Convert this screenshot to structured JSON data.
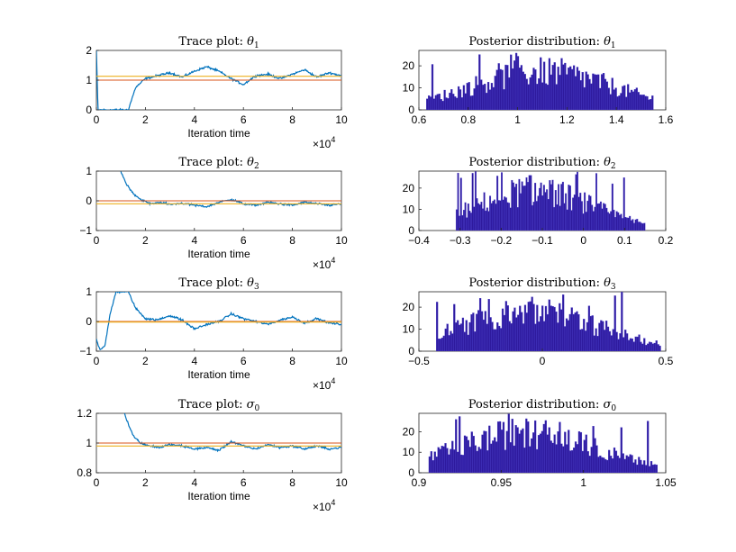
{
  "chart_data": [
    {
      "type": "line",
      "title": "Trace plot: θ1",
      "title_prefix": "Trace plot: ",
      "title_symbol": "θ",
      "title_sub": "1",
      "xlabel": "Iteration time",
      "x_multiplier": "×10",
      "x_multiplier_exp": "4",
      "xlim": [
        0,
        10
      ],
      "ylim": [
        0,
        2
      ],
      "xticks": [
        "0",
        "2",
        "4",
        "6",
        "8",
        "10"
      ],
      "yticks": [
        "0",
        "1",
        "2"
      ],
      "series": [
        {
          "color": "#0072BD",
          "x": [
            0,
            0.05,
            0.1,
            0.15,
            1.3,
            1.6,
            2.0,
            2.5,
            3.0,
            3.5,
            4.0,
            4.5,
            5.0,
            5.5,
            6.0,
            6.5,
            7.0,
            7.5,
            8.0,
            8.5,
            9.0,
            9.5,
            10.0
          ],
          "y": [
            2.0,
            0.4,
            -0.5,
            0.0,
            0.0,
            0.75,
            1.05,
            1.15,
            1.25,
            1.1,
            1.3,
            1.45,
            1.3,
            1.05,
            0.85,
            1.15,
            1.2,
            1.05,
            1.2,
            1.35,
            1.1,
            1.25,
            1.15
          ]
        },
        {
          "color": "#D95319",
          "x": [
            0,
            10
          ],
          "y": [
            1.0,
            1.0
          ]
        },
        {
          "color": "#EDB120",
          "x": [
            0,
            10
          ],
          "y": [
            1.13,
            1.13
          ]
        }
      ]
    },
    {
      "type": "bar",
      "title": "Posterior distribution: θ1",
      "title_prefix": "Posterior distribution: ",
      "title_symbol": "θ",
      "title_sub": "1",
      "xlim": [
        0.6,
        1.6
      ],
      "ylim": [
        0,
        27
      ],
      "xticks": [
        "0.6",
        "0.8",
        "1",
        "1.2",
        "1.4",
        "1.6"
      ],
      "yticks": [
        "0",
        "10",
        "20"
      ],
      "range": [
        0.63,
        1.55
      ],
      "peak": 1.1,
      "max": 26,
      "color": "#2E1A9E"
    },
    {
      "type": "line",
      "title": "Trace plot: θ2",
      "title_prefix": "Trace plot: ",
      "title_symbol": "θ",
      "title_sub": "2",
      "xlabel": "Iteration time",
      "x_multiplier": "×10",
      "x_multiplier_exp": "4",
      "xlim": [
        0,
        10
      ],
      "ylim": [
        -1,
        1
      ],
      "xticks": [
        "0",
        "2",
        "4",
        "6",
        "8",
        "10"
      ],
      "yticks": [
        "-1",
        "0",
        "1"
      ],
      "series": [
        {
          "color": "#0072BD",
          "x": [
            1.0,
            1.2,
            1.5,
            1.8,
            2.2,
            2.6,
            3.0,
            3.5,
            4.0,
            4.5,
            5.0,
            5.5,
            6.0,
            6.5,
            7.0,
            7.5,
            8.0,
            8.5,
            9.0,
            9.5,
            10.0
          ],
          "y": [
            1.0,
            0.6,
            0.25,
            0.05,
            -0.1,
            -0.05,
            -0.12,
            -0.08,
            -0.15,
            -0.2,
            -0.05,
            0.05,
            -0.1,
            -0.15,
            -0.05,
            -0.1,
            -0.15,
            -0.05,
            -0.1,
            -0.15,
            -0.1
          ]
        },
        {
          "color": "#D95319",
          "x": [
            0,
            10
          ],
          "y": [
            0.0,
            0.0
          ]
        },
        {
          "color": "#EDB120",
          "x": [
            0,
            10
          ],
          "y": [
            -0.1,
            -0.1
          ]
        }
      ]
    },
    {
      "type": "bar",
      "title": "Posterior distribution: θ2",
      "title_prefix": "Posterior distribution: ",
      "title_symbol": "θ",
      "title_sub": "2",
      "xlim": [
        -0.4,
        0.2
      ],
      "ylim": [
        0,
        28
      ],
      "xticks": [
        "-0.4",
        "-0.3",
        "-0.2",
        "-0.1",
        "0",
        "0.1",
        "0.2"
      ],
      "yticks": [
        "0",
        "10",
        "20"
      ],
      "range": [
        -0.31,
        0.15
      ],
      "peak": -0.12,
      "max": 28,
      "color": "#2E1A9E"
    },
    {
      "type": "line",
      "title": "Trace plot: θ3",
      "title_prefix": "Trace plot: ",
      "title_symbol": "θ",
      "title_sub": "3",
      "xlabel": "Iteration time",
      "x_multiplier": "×10",
      "x_multiplier_exp": "4",
      "xlim": [
        0,
        10
      ],
      "ylim": [
        -1,
        1
      ],
      "xticks": [
        "0",
        "2",
        "4",
        "6",
        "8",
        "10"
      ],
      "yticks": [
        "-1",
        "0",
        "1"
      ],
      "series": [
        {
          "color": "#0072BD",
          "x": [
            0,
            0.15,
            0.35,
            0.55,
            0.8,
            1.0,
            1.3,
            1.6,
            2.0,
            2.5,
            3.0,
            3.5,
            4.0,
            4.5,
            5.0,
            5.5,
            6.0,
            6.5,
            7.0,
            7.5,
            8.0,
            8.5,
            9.0,
            9.5,
            10.0
          ],
          "y": [
            -0.6,
            -0.95,
            -0.8,
            0.2,
            1.0,
            1.0,
            1.0,
            0.45,
            0.1,
            0.05,
            0.2,
            0.05,
            -0.25,
            -0.1,
            0.0,
            0.25,
            0.1,
            0.0,
            -0.1,
            0.05,
            0.15,
            -0.05,
            0.1,
            -0.05,
            -0.1
          ]
        },
        {
          "color": "#D95319",
          "x": [
            0,
            10
          ],
          "y": [
            0.0,
            0.0
          ]
        },
        {
          "color": "#EDB120",
          "x": [
            0,
            10
          ],
          "y": [
            -0.02,
            -0.02
          ]
        }
      ]
    },
    {
      "type": "bar",
      "title": "Posterior distribution: θ3",
      "title_prefix": "Posterior distribution: ",
      "title_symbol": "θ",
      "title_sub": "3",
      "xlim": [
        -0.5,
        0.5
      ],
      "ylim": [
        0,
        27
      ],
      "xticks": [
        "-0.5",
        "0",
        "0.5"
      ],
      "yticks": [
        "0",
        "10",
        "20"
      ],
      "range": [
        -0.43,
        0.48
      ],
      "peak": -0.05,
      "max": 27,
      "color": "#2E1A9E"
    },
    {
      "type": "line",
      "title": "Trace plot: σ0",
      "title_prefix": "Trace plot: ",
      "title_symbol": "σ",
      "title_sub": "0",
      "xlabel": "Iteration time",
      "x_multiplier": "×10",
      "x_multiplier_exp": "4",
      "xlim": [
        0,
        10
      ],
      "ylim": [
        0.8,
        1.2
      ],
      "xticks": [
        "0",
        "2",
        "4",
        "6",
        "8",
        "10"
      ],
      "yticks": [
        "0.8",
        "1",
        "1.2"
      ],
      "series": [
        {
          "color": "#0072BD",
          "x": [
            1.15,
            1.3,
            1.5,
            1.8,
            2.2,
            2.6,
            3.0,
            3.5,
            4.0,
            4.5,
            5.0,
            5.5,
            6.0,
            6.5,
            7.0,
            7.5,
            8.0,
            8.5,
            9.0,
            9.5,
            10.0
          ],
          "y": [
            1.2,
            1.13,
            1.05,
            1.0,
            0.98,
            0.97,
            0.99,
            0.98,
            0.96,
            0.97,
            0.95,
            1.01,
            0.98,
            0.96,
            0.99,
            0.97,
            0.98,
            0.96,
            0.98,
            0.96,
            0.97
          ]
        },
        {
          "color": "#D95319",
          "x": [
            0,
            10
          ],
          "y": [
            1.0,
            1.0
          ]
        },
        {
          "color": "#EDB120",
          "x": [
            0,
            10
          ],
          "y": [
            0.98,
            0.98
          ]
        }
      ]
    },
    {
      "type": "bar",
      "title": "Posterior distribution: σ0",
      "title_prefix": "Posterior distribution: ",
      "title_symbol": "σ",
      "title_sub": "0",
      "xlim": [
        0.9,
        1.05
      ],
      "ylim": [
        0,
        29
      ],
      "xticks": [
        "0.9",
        "0.95",
        "1",
        "1.05"
      ],
      "yticks": [
        "0",
        "10",
        "20"
      ],
      "range": [
        0.906,
        1.045
      ],
      "peak": 0.965,
      "max": 29,
      "color": "#2E1A9E"
    }
  ]
}
